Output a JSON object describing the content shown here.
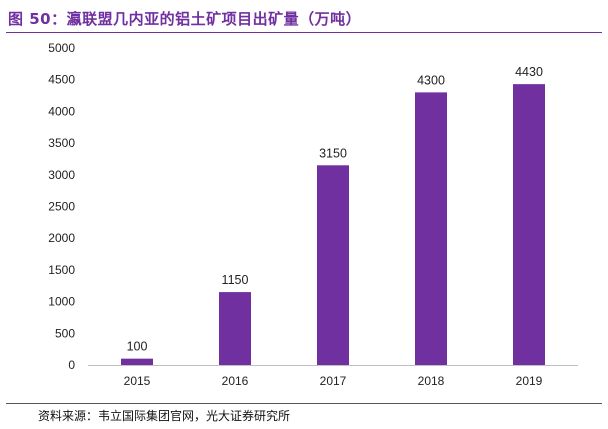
{
  "title": "图 50：瀛联盟几内亚的铝土矿项目出矿量（万吨）",
  "source": "资料来源：韦立国际集团官网，光大证券研究所",
  "colors": {
    "bar": "#7030a0",
    "title": "#7030a0"
  },
  "chart_data": {
    "type": "bar",
    "categories": [
      "2015",
      "2016",
      "2017",
      "2018",
      "2019"
    ],
    "values": [
      100,
      1150,
      3150,
      4300,
      4430
    ],
    "title": "图 50：瀛联盟几内亚的铝土矿项目出矿量（万吨）",
    "xlabel": "",
    "ylabel": "",
    "ylim": [
      0,
      5000
    ],
    "yticks": [
      0,
      500,
      1000,
      1500,
      2000,
      2500,
      3000,
      3500,
      4000,
      4500,
      5000
    ],
    "data_labels": [
      "100",
      "1150",
      "3150",
      "4300",
      "4430"
    ],
    "grid": false,
    "legend": "none"
  }
}
